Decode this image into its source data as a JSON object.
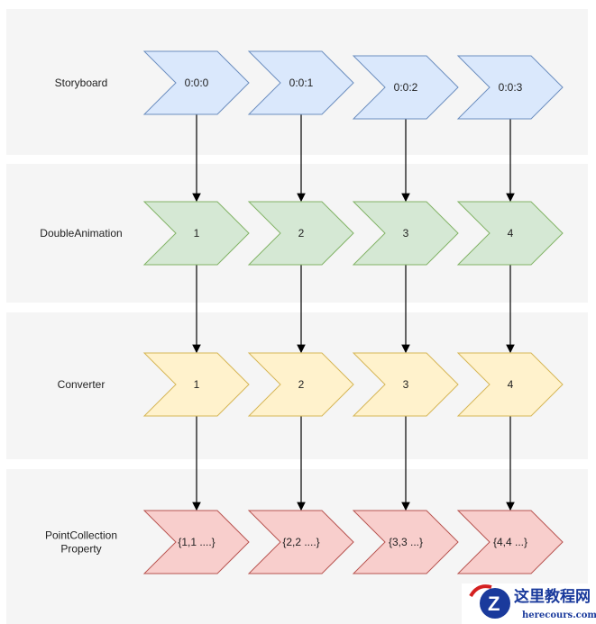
{
  "lanes": [
    {
      "label": [
        "Storyboard"
      ],
      "steps": [
        "0:0:0",
        "0:0:1",
        "0:0:2",
        "0:0:3"
      ],
      "fill": "#dae8fc",
      "stroke": "#6c8ebf"
    },
    {
      "label": [
        "DoubleAnimation"
      ],
      "steps": [
        "1",
        "2",
        "3",
        "4"
      ],
      "fill": "#d5e8d4",
      "stroke": "#82b366"
    },
    {
      "label": [
        "Converter"
      ],
      "steps": [
        "1",
        "2",
        "3",
        "4"
      ],
      "fill": "#fff2cc",
      "stroke": "#d6b656"
    },
    {
      "label": [
        "PointCollection",
        "Property"
      ],
      "steps": [
        "{1,1 ....}",
        "{2,2 ....}",
        "{3,3 ...}",
        "{4,4 ...}"
      ],
      "fill": "#f8cecc",
      "stroke": "#b85450"
    }
  ],
  "lane_background": "#f5f5f5",
  "watermark": {
    "title": "这里教程网",
    "subtitle": "herecours.com"
  }
}
